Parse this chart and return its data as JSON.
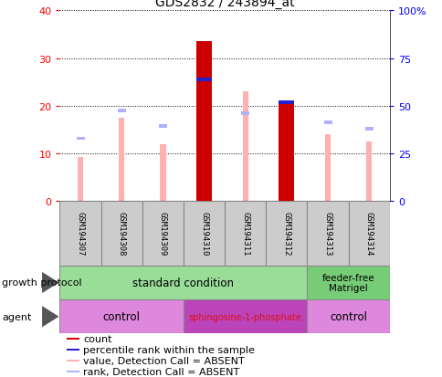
{
  "title": "GDS2832 / 243894_at",
  "samples": [
    "GSM194307",
    "GSM194308",
    "GSM194309",
    "GSM194310",
    "GSM194311",
    "GSM194312",
    "GSM194313",
    "GSM194314"
  ],
  "value_absent": [
    9.2,
    17.5,
    12.0,
    null,
    23.0,
    null,
    14.0,
    12.5
  ],
  "rank_absent": [
    13.2,
    19.0,
    15.8,
    null,
    18.5,
    null,
    16.5,
    15.2
  ],
  "count_bars": [
    null,
    null,
    null,
    33.5,
    null,
    21.0,
    null,
    null
  ],
  "percentile_bars": [
    null,
    null,
    null,
    25.5,
    null,
    20.8,
    null,
    null
  ],
  "ylim_left": [
    0,
    40
  ],
  "ylim_right": [
    0,
    100
  ],
  "yticks_left": [
    0,
    10,
    20,
    30,
    40
  ],
  "yticks_right": [
    0,
    25,
    50,
    75,
    100
  ],
  "ytick_labels_right": [
    "0",
    "25",
    "50",
    "75",
    "100%"
  ],
  "color_count": "#cc0000",
  "color_percentile": "#2222cc",
  "color_value_absent": "#ffb0b0",
  "color_rank_absent": "#b0b0ff",
  "color_growth_std": "#99dd99",
  "color_growth_ff": "#77cc77",
  "color_agent_ctrl": "#dd88dd",
  "color_agent_sph": "#bb44bb",
  "color_sample_box": "#cccccc",
  "legend_items": [
    {
      "color": "#cc0000",
      "label": "count"
    },
    {
      "color": "#2222cc",
      "label": "percentile rank within the sample"
    },
    {
      "color": "#ffb0b0",
      "label": "value, Detection Call = ABSENT"
    },
    {
      "color": "#b0b0ff",
      "label": "rank, Detection Call = ABSENT"
    }
  ]
}
